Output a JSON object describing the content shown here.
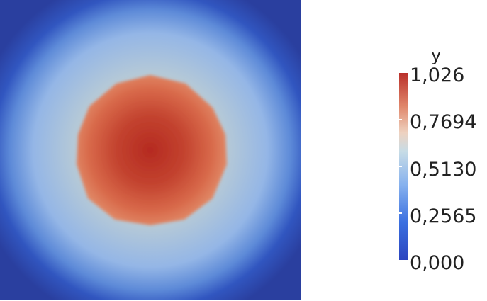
{
  "colorbar": {
    "title": "y",
    "labels": [
      "1,026",
      "0,7694",
      "0,5130",
      "0,2565",
      "0,000"
    ],
    "colors": {
      "min": "#2b45bf",
      "low": "#3a6fe0",
      "mid_low": "#86b1ee",
      "mid": "#c7dce6",
      "mid_high": "#eed2c0",
      "high": "#e0876b",
      "max": "#b9302a"
    }
  }
}
